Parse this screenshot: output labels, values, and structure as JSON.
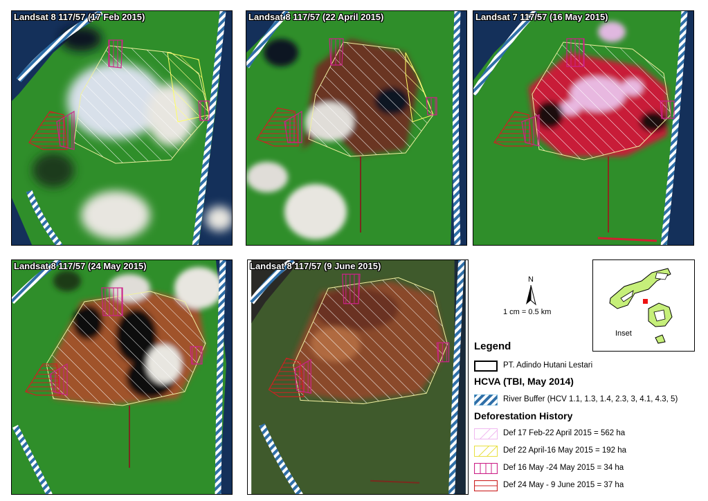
{
  "panels": [
    {
      "label": "Landsat 8 117/57 (17 Feb 2015)"
    },
    {
      "label": "Landsat 8 117/57 (22 April 2015)"
    },
    {
      "label": "Landsat 7 117/57 (16 May 2015)"
    },
    {
      "label": "Landsat 8 117/57 (24 May 2015)"
    },
    {
      "label": "Landsat 8 117/57 (9 June 2015)"
    }
  ],
  "north_arrow": {
    "letter": "N",
    "scale": "1 cm = 0.5 km"
  },
  "inset": {
    "label": "Inset"
  },
  "legend": {
    "title": "Legend",
    "concession": "PT. Adindo Hutani Lestari",
    "hcva_title": "HCVA (TBI, May 2014)",
    "river_buffer": "River Buffer (HCV 1.1, 1.3, 1.4, 2.3, 3, 4.1, 4.3, 5)",
    "deforestation_title": "Deforestation History",
    "items": [
      {
        "label": "Def 17 Feb-22 April 2015 = 562 ha",
        "color": "#f0b8f0"
      },
      {
        "label": "Def 22 April-16 May 2015 = 192 ha",
        "color": "#ffff66"
      },
      {
        "label": "Def 16 May -24 May 2015 = 34 ha",
        "color": "#cc2288"
      },
      {
        "label": "Def 24 May - 9 June 2015 = 37 ha",
        "color": "#cc2222"
      }
    ]
  },
  "colors": {
    "forest": "#3a9a2a",
    "water": "#14305a",
    "river_buffer": "#7ec8e8",
    "cleared_1": "#7a3a1e",
    "cleared_2": "#b06030",
    "burn": "#d0203c",
    "cloud": "#e8e6e0",
    "concession": "#000000"
  }
}
